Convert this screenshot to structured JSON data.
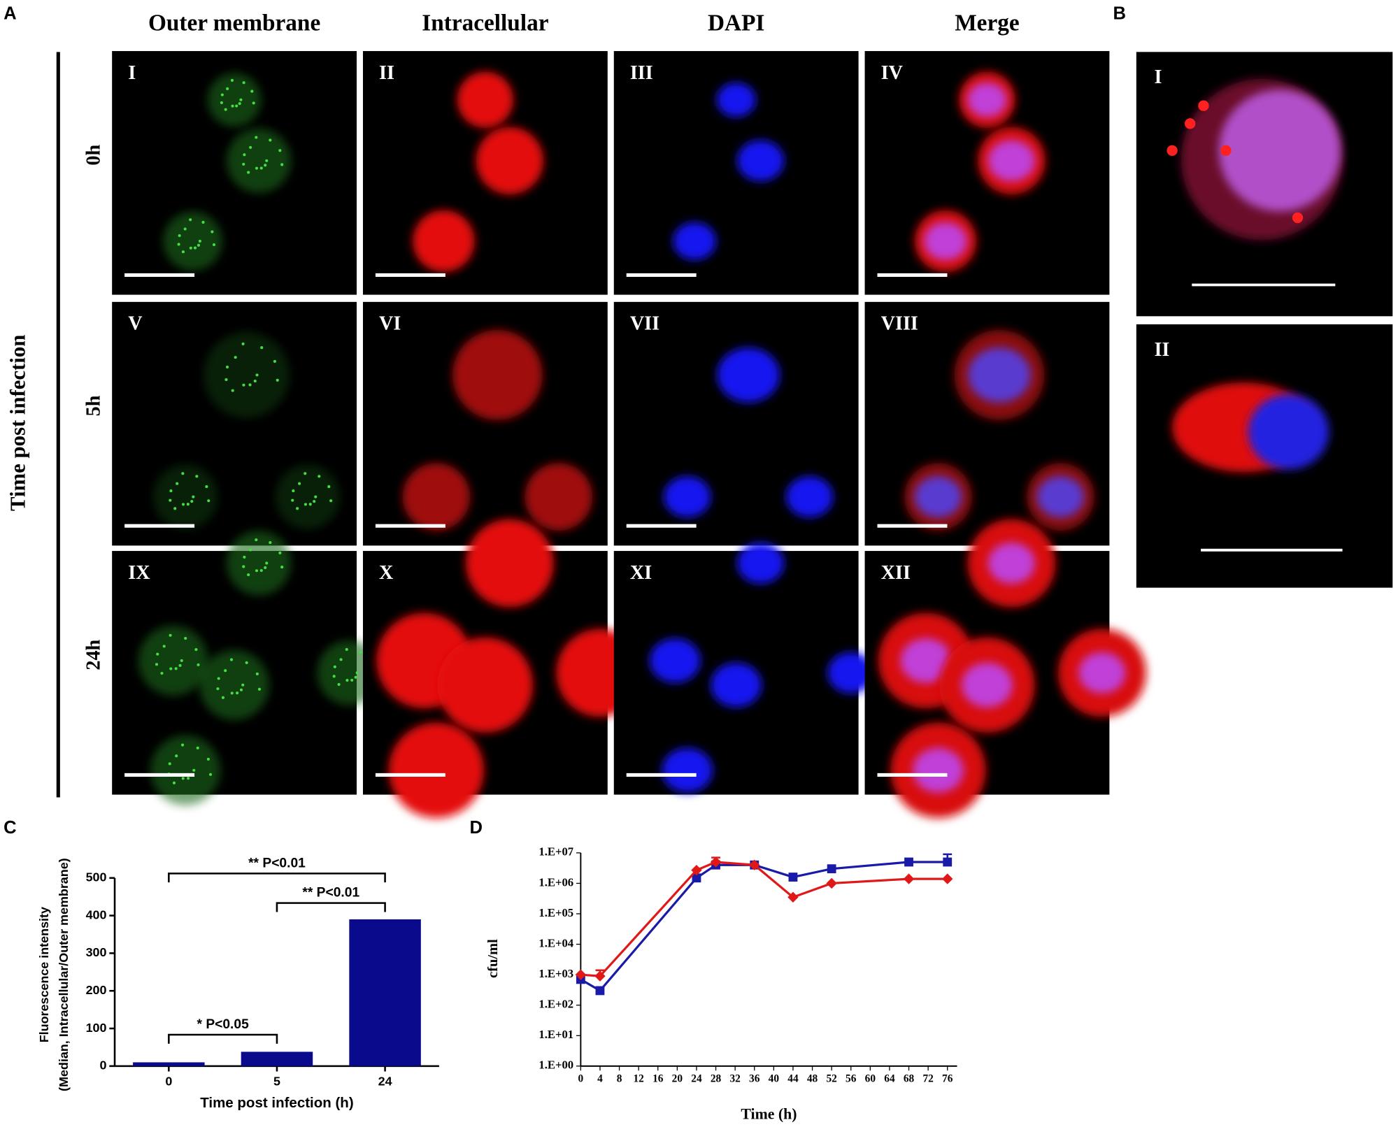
{
  "panel_a": {
    "label": "A",
    "row_axis_title": "Time post infection",
    "columns": [
      "Outer membrane",
      "Intracellular",
      "DAPI",
      "Merge"
    ],
    "rows": [
      "0h",
      "5h",
      "24h"
    ],
    "tiles": [
      "I",
      "II",
      "III",
      "IV",
      "V",
      "VI",
      "VII",
      "VIII",
      "IX",
      "X",
      "XI",
      "XII"
    ]
  },
  "panel_b": {
    "label": "B",
    "tiles": [
      "I",
      "II"
    ]
  },
  "chart_data": [
    {
      "type": "bar",
      "label": "C",
      "categories": [
        "0",
        "5",
        "24"
      ],
      "values": [
        10,
        38,
        390
      ],
      "color": "#0a0a8c",
      "xlabel": "Time post infection (h)",
      "ylabel": [
        "Fluorescence intensity",
        "(Median, Intracellular/Outer membrane)"
      ],
      "ylim": [
        0,
        500
      ],
      "yticks": [
        0,
        100,
        200,
        300,
        400,
        500
      ],
      "annotations": [
        "** P<0.01",
        "** P<0.01",
        "* P<0.05"
      ]
    },
    {
      "type": "line",
      "label": "D",
      "xlabel": "Time (h)",
      "ylabel": "cfu/ml",
      "log_y": true,
      "x": [
        0,
        4,
        24,
        28,
        36,
        44,
        52,
        68,
        76
      ],
      "series": [
        {
          "name": "blue",
          "color": "#1a1aa8",
          "marker": "square",
          "values": [
            700,
            300,
            1500000,
            4000000,
            4000000,
            1600000,
            3000000,
            5000000,
            5000000
          ],
          "errors": [
            null,
            null,
            null,
            null,
            null,
            null,
            null,
            null,
            4000000
          ]
        },
        {
          "name": "red",
          "color": "#e01818",
          "marker": "diamond",
          "values": [
            1000,
            900,
            2700000,
            5000000,
            4000000,
            350000,
            1000000,
            1400000,
            1400000
          ],
          "errors": [
            null,
            500,
            null,
            2000000,
            null,
            null,
            null,
            null,
            null
          ]
        }
      ],
      "xlim": [
        0,
        78
      ],
      "xticks": [
        0,
        4,
        8,
        12,
        16,
        20,
        24,
        28,
        32,
        36,
        40,
        44,
        48,
        52,
        56,
        60,
        64,
        68,
        72,
        76
      ],
      "ylim": [
        1,
        10000000
      ],
      "yticks": [
        {
          "value": 1,
          "label": "1.E+00"
        },
        {
          "value": 10,
          "label": "1.E+01"
        },
        {
          "value": 100,
          "label": "1.E+02"
        },
        {
          "value": 1000,
          "label": "1.E+03"
        },
        {
          "value": 10000,
          "label": "1.E+04"
        },
        {
          "value": 100000,
          "label": "1.E+05"
        },
        {
          "value": 1000000,
          "label": "1.E+06"
        },
        {
          "value": 10000000,
          "label": "1.E+07"
        }
      ]
    }
  ]
}
